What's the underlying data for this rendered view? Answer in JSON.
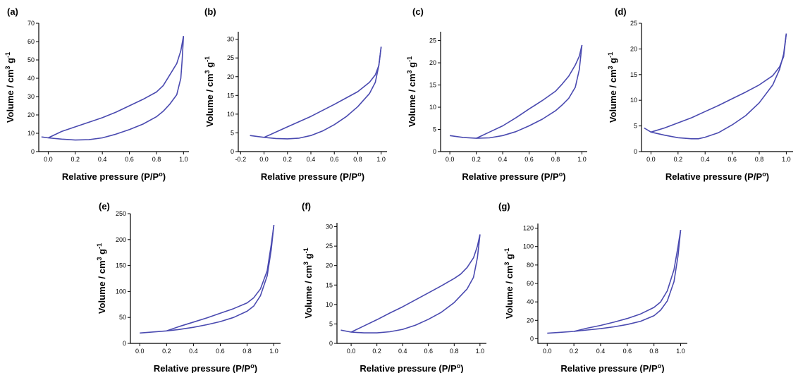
{
  "colors": {
    "curve": "#4a4ab0",
    "axis": "#000000"
  },
  "chart_data": [
    {
      "type": "line",
      "panel_label": "(a)",
      "xlabel": "Relative pressure (P/P°)",
      "ylabel": "Volume / cm³ g⁻¹",
      "xlim": [
        -0.07,
        1.04
      ],
      "ylim": [
        0,
        70
      ],
      "xticks": [
        0.0,
        0.2,
        0.4,
        0.6,
        0.8,
        1.0
      ],
      "xtick_labels": [
        "0.0",
        "0.2",
        "0.4",
        "0.6",
        "0.8",
        "1.0"
      ],
      "yticks": [
        0,
        10,
        20,
        30,
        40,
        50,
        60,
        70
      ],
      "ytick_labels": [
        "0",
        "10",
        "20",
        "30",
        "40",
        "50",
        "60",
        "70"
      ],
      "series": [
        {
          "x": [
            -0.05,
            0.0,
            0.1,
            0.2,
            0.3,
            0.4,
            0.5,
            0.6,
            0.7,
            0.8,
            0.85,
            0.9,
            0.95,
            0.98,
            0.99,
            1.0
          ],
          "y": [
            8,
            7.5,
            6.8,
            6.3,
            6.5,
            7.5,
            9.5,
            12,
            15,
            19,
            22,
            26,
            31,
            40,
            50,
            63
          ]
        },
        {
          "x": [
            0.0,
            0.1,
            0.2,
            0.3,
            0.4,
            0.5,
            0.6,
            0.7,
            0.8,
            0.85,
            0.9,
            0.95,
            0.98,
            1.0
          ],
          "y": [
            7.5,
            11,
            13.5,
            16,
            18.5,
            21.5,
            25,
            28.5,
            32.5,
            36,
            42,
            48,
            55,
            63
          ]
        }
      ]
    },
    {
      "type": "line",
      "panel_label": "(b)",
      "xlabel": "Relative pressure (P/P°)",
      "ylabel": "Volume / cm³ g⁻¹",
      "xlim": [
        -0.22,
        1.05
      ],
      "ylim": [
        0,
        32
      ],
      "xticks": [
        -0.2,
        0.0,
        0.2,
        0.4,
        0.6,
        0.8,
        1.0
      ],
      "xtick_labels": [
        "-0.2",
        "0.0",
        "0.2",
        "0.4",
        "0.6",
        "0.8",
        "1.0"
      ],
      "yticks": [
        0,
        5,
        10,
        15,
        20,
        25,
        30
      ],
      "ytick_labels": [
        "0",
        "5",
        "10",
        "15",
        "20",
        "25",
        "30"
      ],
      "series": [
        {
          "x": [
            -0.12,
            0.0,
            0.1,
            0.2,
            0.3,
            0.4,
            0.5,
            0.6,
            0.7,
            0.8,
            0.9,
            0.95,
            0.98,
            1.0
          ],
          "y": [
            4.3,
            3.8,
            3.5,
            3.4,
            3.6,
            4.3,
            5.5,
            7.2,
            9.3,
            12,
            15.5,
            18.5,
            23,
            28
          ]
        },
        {
          "x": [
            0.0,
            0.1,
            0.2,
            0.3,
            0.4,
            0.5,
            0.6,
            0.7,
            0.8,
            0.9,
            0.95,
            0.98,
            1.0
          ],
          "y": [
            3.8,
            5.2,
            6.6,
            8,
            9.4,
            11,
            12.6,
            14.3,
            16,
            18.5,
            20.5,
            23,
            28
          ]
        }
      ]
    },
    {
      "type": "line",
      "panel_label": "(c)",
      "xlabel": "Relative pressure (P/P°)",
      "ylabel": "Volume / cm³ g⁻¹",
      "xlim": [
        -0.07,
        1.04
      ],
      "ylim": [
        0,
        27
      ],
      "xticks": [
        0.0,
        0.2,
        0.4,
        0.6,
        0.8,
        1.0
      ],
      "xtick_labels": [
        "0.0",
        "0.2",
        "0.4",
        "0.6",
        "0.8",
        "1.0"
      ],
      "yticks": [
        0,
        5,
        10,
        15,
        20,
        25
      ],
      "ytick_labels": [
        "0",
        "5",
        "10",
        "15",
        "20",
        "25"
      ],
      "series": [
        {
          "x": [
            0.0,
            0.1,
            0.2,
            0.3,
            0.4,
            0.5,
            0.6,
            0.7,
            0.8,
            0.85,
            0.9,
            0.95,
            0.98,
            1.0
          ],
          "y": [
            3.6,
            3.2,
            3.0,
            3.1,
            3.6,
            4.5,
            5.8,
            7.3,
            9.2,
            10.5,
            12,
            14.5,
            18.5,
            24
          ]
        },
        {
          "x": [
            0.2,
            0.3,
            0.4,
            0.5,
            0.6,
            0.7,
            0.8,
            0.85,
            0.9,
            0.95,
            0.98,
            1.0
          ],
          "y": [
            3.0,
            4.4,
            5.8,
            7.6,
            9.6,
            11.5,
            13.6,
            15.2,
            17,
            19.5,
            21.5,
            24
          ]
        }
      ]
    },
    {
      "type": "line",
      "panel_label": "(d)",
      "xlabel": "Relative pressure (P/P°)",
      "ylabel": "Volume / cm³ g⁻¹",
      "xlim": [
        -0.07,
        1.05
      ],
      "ylim": [
        0,
        25
      ],
      "xticks": [
        0.0,
        0.2,
        0.4,
        0.6,
        0.8,
        1.0
      ],
      "xtick_labels": [
        "0.0",
        "0.2",
        "0.4",
        "0.6",
        "0.8",
        "1.0"
      ],
      "yticks": [
        0,
        5,
        10,
        15,
        20,
        25
      ],
      "ytick_labels": [
        "0",
        "5",
        "10",
        "15",
        "20",
        "25"
      ],
      "series": [
        {
          "x": [
            -0.05,
            0.0,
            0.1,
            0.2,
            0.3,
            0.35,
            0.4,
            0.5,
            0.6,
            0.7,
            0.8,
            0.9,
            0.95,
            0.98,
            1.0
          ],
          "y": [
            4.6,
            3.8,
            3.2,
            2.7,
            2.5,
            2.5,
            2.8,
            3.7,
            5.2,
            7,
            9.5,
            13,
            16,
            19,
            23
          ]
        },
        {
          "x": [
            0.0,
            0.1,
            0.2,
            0.3,
            0.4,
            0.5,
            0.6,
            0.7,
            0.8,
            0.9,
            0.95,
            0.98,
            1.0
          ],
          "y": [
            3.8,
            4.6,
            5.6,
            6.6,
            7.8,
            9,
            10.3,
            11.6,
            13,
            14.8,
            16.5,
            18.5,
            23
          ]
        }
      ]
    },
    {
      "type": "line",
      "panel_label": "(e)",
      "xlabel": "Relative pressure (P/P°)",
      "ylabel": "Volume / cm³ g⁻¹",
      "xlim": [
        -0.07,
        1.05
      ],
      "ylim": [
        0,
        250
      ],
      "xticks": [
        0.0,
        0.2,
        0.4,
        0.6,
        0.8,
        1.0
      ],
      "xtick_labels": [
        "0.0",
        "0.2",
        "0.4",
        "0.6",
        "0.8",
        "1.0"
      ],
      "yticks": [
        0,
        50,
        100,
        150,
        200,
        250
      ],
      "ytick_labels": [
        "0",
        "50",
        "100",
        "150",
        "200",
        "250"
      ],
      "series": [
        {
          "x": [
            0.0,
            0.1,
            0.2,
            0.3,
            0.4,
            0.5,
            0.6,
            0.7,
            0.8,
            0.85,
            0.9,
            0.95,
            0.98,
            1.0
          ],
          "y": [
            20,
            22,
            24,
            27,
            31,
            36,
            42,
            50,
            62,
            72,
            92,
            130,
            180,
            228
          ]
        },
        {
          "x": [
            0.2,
            0.3,
            0.4,
            0.5,
            0.6,
            0.7,
            0.8,
            0.85,
            0.9,
            0.95,
            0.98,
            1.0
          ],
          "y": [
            24,
            33,
            41,
            49,
            58,
            67,
            78,
            88,
            105,
            140,
            190,
            228
          ]
        }
      ]
    },
    {
      "type": "line",
      "panel_label": "(f)",
      "xlabel": "Relative pressure (P/P°)",
      "ylabel": "Volume / cm³ g⁻¹",
      "xlim": [
        -0.11,
        1.05
      ],
      "ylim": [
        0,
        31
      ],
      "xticks": [
        0.0,
        0.2,
        0.4,
        0.6,
        0.8,
        1.0
      ],
      "xtick_labels": [
        "0.0",
        "0.2",
        "0.4",
        "0.6",
        "0.8",
        "1.0"
      ],
      "yticks": [
        0,
        5,
        10,
        15,
        20,
        25,
        30
      ],
      "ytick_labels": [
        "0",
        "5",
        "10",
        "15",
        "20",
        "25",
        "30"
      ],
      "series": [
        {
          "x": [
            -0.08,
            0.0,
            0.1,
            0.2,
            0.3,
            0.4,
            0.5,
            0.6,
            0.7,
            0.8,
            0.9,
            0.95,
            0.98,
            1.0
          ],
          "y": [
            3.4,
            2.9,
            2.7,
            2.7,
            3.0,
            3.6,
            4.7,
            6.2,
            8,
            10.5,
            14,
            17,
            22,
            28
          ]
        },
        {
          "x": [
            0.0,
            0.1,
            0.2,
            0.3,
            0.4,
            0.5,
            0.6,
            0.7,
            0.8,
            0.85,
            0.9,
            0.95,
            0.98,
            1.0
          ],
          "y": [
            2.9,
            4.5,
            6.1,
            7.8,
            9.4,
            11.2,
            13,
            14.8,
            16.7,
            17.8,
            19.5,
            22,
            25,
            28
          ]
        }
      ]
    },
    {
      "type": "line",
      "panel_label": "(g)",
      "xlabel": "Relative pressure (P/P°)",
      "ylabel": "Volume / cm³ g⁻¹",
      "xlim": [
        -0.07,
        1.05
      ],
      "ylim": [
        -5,
        125
      ],
      "xticks": [
        0.0,
        0.2,
        0.4,
        0.6,
        0.8,
        1.0
      ],
      "xtick_labels": [
        "0.0",
        "0.2",
        "0.4",
        "0.6",
        "0.8",
        "1.0"
      ],
      "yticks": [
        0,
        20,
        40,
        60,
        80,
        100,
        120
      ],
      "ytick_labels": [
        "0",
        "20",
        "40",
        "60",
        "80",
        "100",
        "120"
      ],
      "series": [
        {
          "x": [
            0.0,
            0.1,
            0.2,
            0.3,
            0.4,
            0.5,
            0.6,
            0.7,
            0.8,
            0.85,
            0.9,
            0.95,
            0.98,
            1.0
          ],
          "y": [
            6,
            7,
            8,
            9.5,
            11,
            13,
            15.5,
            19,
            25,
            31,
            41,
            62,
            90,
            118
          ]
        },
        {
          "x": [
            0.2,
            0.3,
            0.4,
            0.5,
            0.6,
            0.7,
            0.8,
            0.85,
            0.9,
            0.95,
            0.98,
            1.0
          ],
          "y": [
            8,
            11.5,
            14.5,
            18,
            22,
            27,
            34,
            40,
            52,
            75,
            100,
            118
          ]
        }
      ]
    }
  ]
}
